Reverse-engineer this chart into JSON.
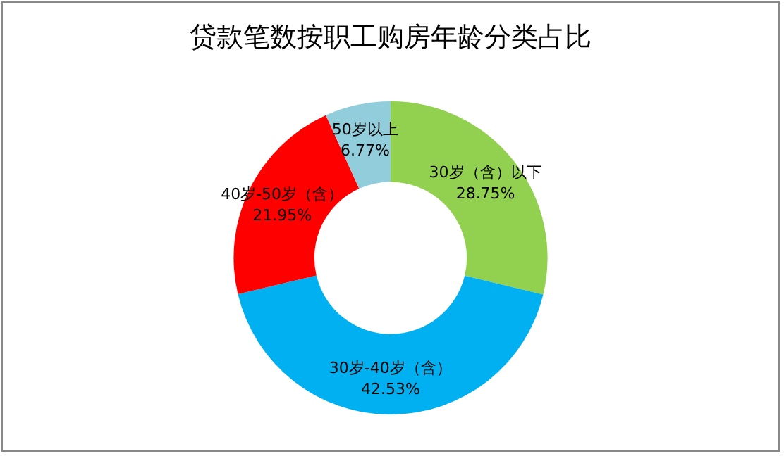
{
  "chart_data": {
    "type": "donut",
    "title": "贷款笔数按职工购房年龄分类占比",
    "categories": [
      "30岁（含）以下",
      "30岁-40岁（含）",
      "40岁-50岁（含）",
      "50岁以上"
    ],
    "values": [
      28.75,
      42.53,
      21.95,
      6.77
    ],
    "colors": [
      "#92d050",
      "#00b0f0",
      "#ff0000",
      "#92cddc"
    ],
    "value_labels": [
      "28.75%",
      "42.53%",
      "21.95%",
      "6.77%"
    ],
    "legend": false
  }
}
